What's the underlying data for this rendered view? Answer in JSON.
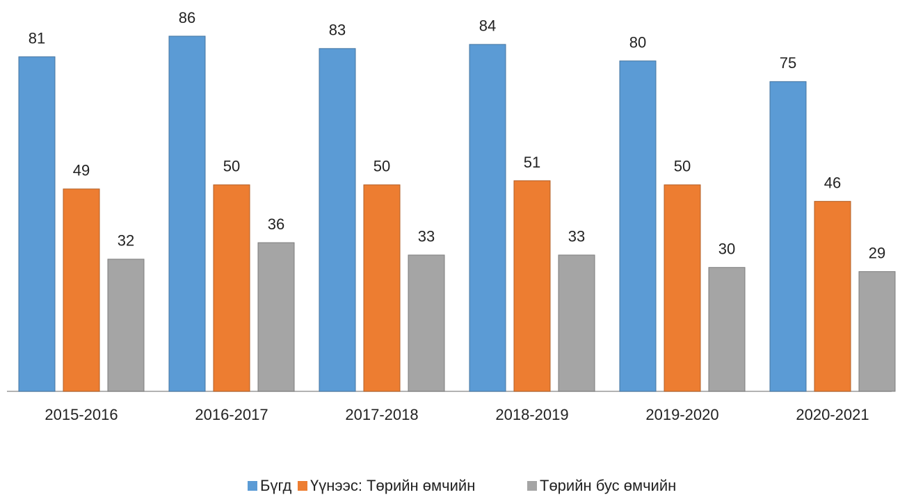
{
  "chart_data": {
    "type": "bar",
    "categories": [
      "2015-2016",
      "2016-2017",
      "2017-2018",
      "2018-2019",
      "2019-2020",
      "2020-2021"
    ],
    "series": [
      {
        "name": "Бүгд",
        "color": "#5b9bd5",
        "values": [
          81,
          86,
          83,
          84,
          80,
          75
        ]
      },
      {
        "name": "Үүнээс: Төрийн өмчийн",
        "color": "#ed7d31",
        "values": [
          49,
          50,
          50,
          51,
          50,
          46
        ]
      },
      {
        "name": "Төрийн бус өмчийн",
        "color": "#a5a5a5",
        "values": [
          32,
          36,
          33,
          33,
          30,
          29
        ]
      }
    ],
    "legend": "bottom"
  }
}
